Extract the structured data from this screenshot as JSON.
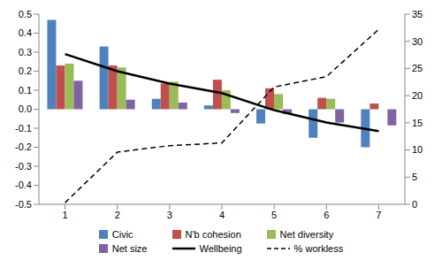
{
  "chart_data": {
    "type": "bar",
    "categories": [
      1,
      2,
      3,
      4,
      5,
      6,
      7
    ],
    "ylim": [
      -0.5,
      0.5
    ],
    "yticks": [
      -0.5,
      -0.4,
      -0.3,
      -0.2,
      -0.1,
      {
        "value": 0,
        "label": "0.0"
      },
      0.1,
      0.2,
      0.3,
      0.4,
      0.5
    ],
    "y2lim": [
      0,
      35
    ],
    "y2ticks": [
      0,
      5,
      10,
      15,
      20,
      25,
      30,
      35
    ],
    "grid": false,
    "legend": "bottom",
    "series": [
      {
        "name": "Civic",
        "type": "bar",
        "color": "#4f81bd",
        "values": [
          0.47,
          0.33,
          0.055,
          0.02,
          -0.075,
          -0.15,
          -0.2
        ]
      },
      {
        "name": "N'b cohesion",
        "type": "bar",
        "color": "#c0504d",
        "values": [
          0.23,
          0.23,
          0.135,
          0.155,
          0.11,
          0.06,
          0.03
        ]
      },
      {
        "name": "Net diversity",
        "type": "bar",
        "color": "#9bbb59",
        "values": [
          0.24,
          0.22,
          0.145,
          0.1,
          0.08,
          0.055,
          null
        ]
      },
      {
        "name": "Net size",
        "type": "bar",
        "color": "#8064a2",
        "values": [
          0.15,
          0.05,
          0.035,
          -0.02,
          -0.025,
          -0.07,
          -0.085
        ]
      },
      {
        "name": "Wellbeing",
        "type": "line",
        "color": "#000000",
        "line_style": "solid",
        "marker": "none",
        "values": [
          0.29,
          0.2,
          0.135,
          0.085,
          -0.005,
          -0.07,
          -0.115
        ]
      },
      {
        "name": "% workless",
        "type": "line",
        "color": "#000000",
        "line_style": "dashed",
        "marker": "none",
        "axis": "y2",
        "values": [
          0.3,
          9.6,
          10.8,
          11.3,
          21.6,
          23.5,
          32.2
        ]
      }
    ]
  }
}
